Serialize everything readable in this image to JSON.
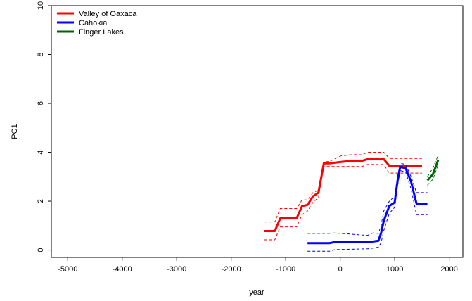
{
  "chart_data": {
    "type": "line",
    "title": "",
    "xlabel": "year",
    "ylabel": "PC1",
    "xlim": [
      -5300,
      2250
    ],
    "ylim": [
      -0.3,
      10
    ],
    "x_ticks": [
      -5000,
      -4000,
      -3000,
      -2000,
      -1000,
      0,
      1000,
      2000
    ],
    "y_ticks": [
      0,
      2,
      4,
      6,
      8,
      10
    ],
    "grid": false,
    "legend_position": "top-left",
    "series": [
      {
        "name": "Valley of Oaxaca",
        "color": "#ff0000",
        "x": [
          -1400,
          -1200,
          -1100,
          -800,
          -700,
          -600,
          -500,
          -400,
          -300,
          -200,
          0,
          200,
          400,
          500,
          800,
          900,
          1500
        ],
        "y": [
          0.78,
          0.78,
          1.3,
          1.3,
          1.8,
          1.85,
          2.2,
          2.35,
          3.55,
          3.55,
          3.6,
          3.65,
          3.65,
          3.72,
          3.72,
          3.45,
          3.45
        ],
        "lower": [
          0.42,
          0.42,
          0.95,
          0.95,
          1.45,
          1.6,
          1.95,
          2.15,
          3.42,
          3.42,
          3.42,
          3.42,
          3.42,
          3.5,
          3.5,
          3.15,
          3.15
        ],
        "upper": [
          1.15,
          1.15,
          1.7,
          1.7,
          2.05,
          2.05,
          2.35,
          2.45,
          3.62,
          3.62,
          3.85,
          3.9,
          3.9,
          4.0,
          4.0,
          3.75,
          3.75
        ]
      },
      {
        "name": "Cahokia",
        "color": "#0000ff",
        "x": [
          -600,
          -200,
          -100,
          500,
          600,
          700,
          750,
          800,
          900,
          1000,
          1050,
          1100,
          1200,
          1300,
          1400,
          1600
        ],
        "y": [
          0.28,
          0.28,
          0.33,
          0.33,
          0.35,
          0.38,
          0.7,
          1.2,
          1.8,
          1.95,
          2.8,
          3.4,
          3.35,
          2.8,
          1.9,
          1.9
        ],
        "lower": [
          -0.05,
          -0.05,
          0.02,
          0.05,
          0.08,
          0.12,
          0.3,
          0.8,
          1.5,
          1.75,
          2.6,
          3.25,
          3.2,
          2.5,
          1.45,
          1.45
        ],
        "upper": [
          0.68,
          0.68,
          0.7,
          0.6,
          0.7,
          0.68,
          1.0,
          1.6,
          2.0,
          2.2,
          3.0,
          3.55,
          3.5,
          3.0,
          2.35,
          2.35
        ]
      },
      {
        "name": "Finger Lakes",
        "color": "#006400",
        "x": [
          1600,
          1700,
          1800
        ],
        "y": [
          2.85,
          3.1,
          3.7
        ],
        "lower": [
          2.65,
          2.9,
          3.5
        ],
        "upper": [
          3.0,
          3.35,
          3.9
        ]
      }
    ]
  }
}
